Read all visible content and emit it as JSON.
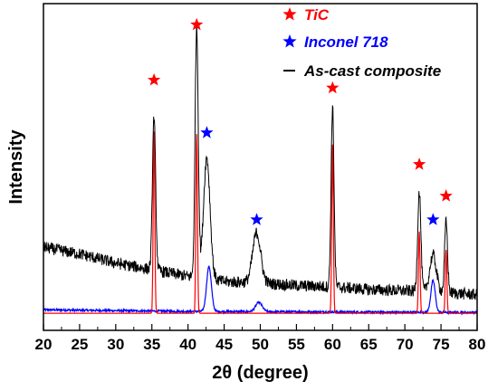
{
  "chart_data": {
    "type": "line",
    "xlabel": "2θ (degree)",
    "ylabel": "Intensity",
    "xlim": [
      20,
      80
    ],
    "x_ticks": [
      "20",
      "25",
      "30",
      "35",
      "40",
      "45",
      "50",
      "55",
      "60",
      "65",
      "70",
      "75",
      "80"
    ],
    "legend_position": "top-right",
    "legend": [
      {
        "label": "TiC",
        "marker": "star",
        "color": "#ff0000"
      },
      {
        "label": "Inconel 718",
        "marker": "star",
        "color": "#0000ff"
      },
      {
        "label": "As-cast composite",
        "marker": "line",
        "color": "#000000"
      }
    ],
    "series": [
      {
        "name": "As-cast composite",
        "color": "#000000",
        "baseline": [
          [
            20,
            0.255
          ],
          [
            25,
            0.23
          ],
          [
            30,
            0.195
          ],
          [
            35,
            0.17
          ],
          [
            40,
            0.145
          ],
          [
            45,
            0.125
          ],
          [
            50,
            0.12
          ],
          [
            55,
            0.11
          ],
          [
            60,
            0.105
          ],
          [
            65,
            0.095
          ],
          [
            70,
            0.09
          ],
          [
            75,
            0.085
          ],
          [
            80,
            0.075
          ]
        ],
        "peaks": [
          {
            "x": 35.3,
            "height": 0.58,
            "width": 0.22
          },
          {
            "x": 41.2,
            "height": 0.95,
            "width": 0.22
          },
          {
            "x": 42.6,
            "height": 0.46,
            "width": 0.45
          },
          {
            "x": 49.5,
            "height": 0.19,
            "width": 0.55
          },
          {
            "x": 60.0,
            "height": 0.68,
            "width": 0.2
          },
          {
            "x": 72.0,
            "height": 0.38,
            "width": 0.22
          },
          {
            "x": 73.9,
            "height": 0.14,
            "width": 0.45
          },
          {
            "x": 75.7,
            "height": 0.27,
            "width": 0.2
          }
        ]
      },
      {
        "name": "TiC",
        "color": "#ff0000",
        "baseline_level": 0.005,
        "peaks": [
          {
            "x": 35.3,
            "height": 0.69,
            "width": 0.11
          },
          {
            "x": 41.2,
            "height": 0.68,
            "width": 0.11
          },
          {
            "x": 60.0,
            "height": 0.64,
            "width": 0.11
          },
          {
            "x": 72.0,
            "height": 0.31,
            "width": 0.11
          },
          {
            "x": 75.7,
            "height": 0.24,
            "width": 0.11
          }
        ]
      },
      {
        "name": "Inconel 718",
        "color": "#0000ff",
        "baseline": [
          [
            20,
            0.018
          ],
          [
            40,
            0.012
          ],
          [
            60,
            0.01
          ],
          [
            80,
            0.008
          ]
        ],
        "peaks": [
          {
            "x": 42.9,
            "height": 0.17,
            "width": 0.33
          },
          {
            "x": 49.8,
            "height": 0.035,
            "width": 0.45
          },
          {
            "x": 73.9,
            "height": 0.12,
            "width": 0.3
          }
        ]
      }
    ],
    "peak_markers": [
      {
        "x": 35.3,
        "level": 0.89,
        "color": "#ff0000"
      },
      {
        "x": 41.2,
        "level": 1.1,
        "color": "#ff0000"
      },
      {
        "x": 42.6,
        "level": 0.69,
        "color": "#0000ff"
      },
      {
        "x": 49.5,
        "level": 0.36,
        "color": "#0000ff"
      },
      {
        "x": 60.0,
        "level": 0.86,
        "color": "#ff0000"
      },
      {
        "x": 72.0,
        "level": 0.57,
        "color": "#ff0000"
      },
      {
        "x": 73.9,
        "level": 0.36,
        "color": "#0000ff"
      },
      {
        "x": 75.7,
        "level": 0.45,
        "color": "#ff0000"
      }
    ]
  }
}
